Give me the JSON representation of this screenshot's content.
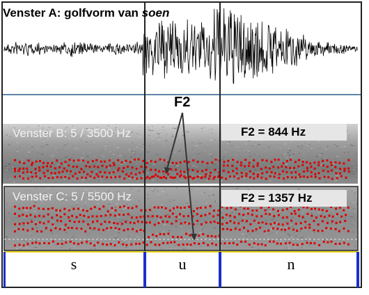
{
  "title": {
    "prefix": "Venster A:  golfvorm van ",
    "word": "soen"
  },
  "f2_label": "F2",
  "spectrogram_b": {
    "label": "Venster B:  5 / 3500 Hz",
    "badge": "F2 = 844 Hz"
  },
  "spectrogram_c": {
    "label": "Venster C:  5 / 5500 Hz",
    "badge": "F2  = 1357 Hz"
  },
  "segments": [
    "s",
    "u",
    "n"
  ],
  "colors": {
    "formant_dots": "#dd0000",
    "segment_bar": "#1a2fcc",
    "divider": "#2a5a8a",
    "segment_underline": "#e8d21a"
  }
}
